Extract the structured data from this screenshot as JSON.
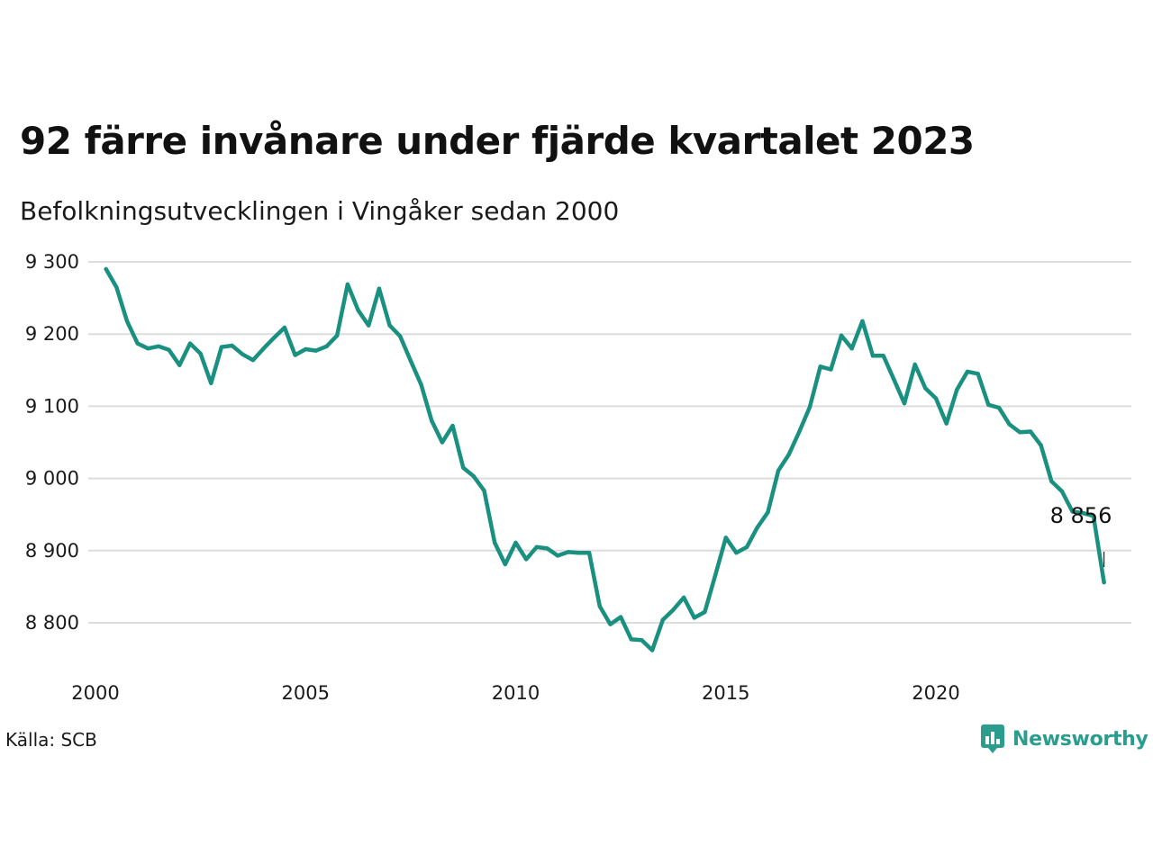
{
  "header": {
    "title": "92 färre invånare under fjärde kvartalet 2023",
    "subtitle": "Befolkningsutvecklingen i Vingåker sedan 2000"
  },
  "footer": {
    "source": "Källa: SCB",
    "logo_text": "Newsworthy",
    "logo_icon": "bar-chart-bubble-icon"
  },
  "colors": {
    "line": "#1a9080",
    "grid": "#dddddd",
    "logo": "#2a9d8f"
  },
  "chart_data": {
    "type": "line",
    "title": "92 färre invånare under fjärde kvartalet 2023",
    "subtitle": "Befolkningsutvecklingen i Vingåker sedan 2000",
    "xlabel": "",
    "ylabel": "",
    "ylim": [
      8760,
      9300
    ],
    "y_ticks": [
      9300,
      9200,
      9100,
      9000,
      8900,
      8800
    ],
    "y_tick_labels": [
      "9 300",
      "9 200",
      "9 100",
      "9 000",
      "8 900",
      "8 800"
    ],
    "x_ticks": [
      2000,
      2005,
      2010,
      2015,
      2020
    ],
    "x_tick_labels": [
      "2000",
      "2005",
      "2010",
      "2015",
      "2020"
    ],
    "grid": true,
    "last_value_label": "8 856",
    "series": [
      {
        "values": [
          [
            2000.25,
            9290
          ],
          [
            2000.5,
            9265
          ],
          [
            2000.75,
            9218
          ],
          [
            2001.0,
            9187
          ],
          [
            2001.25,
            9180
          ],
          [
            2001.5,
            9183
          ],
          [
            2001.75,
            9178
          ],
          [
            2002.0,
            9157
          ],
          [
            2002.25,
            9187
          ],
          [
            2002.5,
            9173
          ],
          [
            2002.75,
            9132
          ],
          [
            2003.0,
            9182
          ],
          [
            2003.25,
            9184
          ],
          [
            2003.5,
            9172
          ],
          [
            2003.75,
            9164
          ],
          [
            2004.0,
            9180
          ],
          [
            2004.25,
            9195
          ],
          [
            2004.5,
            9209
          ],
          [
            2004.75,
            9171
          ],
          [
            2005.0,
            9179
          ],
          [
            2005.25,
            9177
          ],
          [
            2005.5,
            9183
          ],
          [
            2005.75,
            9198
          ],
          [
            2006.0,
            9269
          ],
          [
            2006.25,
            9233
          ],
          [
            2006.5,
            9212
          ],
          [
            2006.75,
            9263
          ],
          [
            2007.0,
            9212
          ],
          [
            2007.25,
            9197
          ],
          [
            2007.5,
            9163
          ],
          [
            2007.75,
            9130
          ],
          [
            2008.0,
            9080
          ],
          [
            2008.25,
            9050
          ],
          [
            2008.5,
            9073
          ],
          [
            2008.75,
            9015
          ],
          [
            2009.0,
            9003
          ],
          [
            2009.25,
            8983
          ],
          [
            2009.5,
            8911
          ],
          [
            2009.75,
            8881
          ],
          [
            2010.0,
            8911
          ],
          [
            2010.25,
            8888
          ],
          [
            2010.5,
            8905
          ],
          [
            2010.75,
            8903
          ],
          [
            2011.0,
            8893
          ],
          [
            2011.25,
            8898
          ],
          [
            2011.5,
            8897
          ],
          [
            2011.75,
            8897
          ],
          [
            2012.0,
            8823
          ],
          [
            2012.25,
            8798
          ],
          [
            2012.5,
            8808
          ],
          [
            2012.75,
            8777
          ],
          [
            2013.0,
            8776
          ],
          [
            2013.25,
            8762
          ],
          [
            2013.5,
            8804
          ],
          [
            2013.75,
            8818
          ],
          [
            2014.0,
            8835
          ],
          [
            2014.25,
            8807
          ],
          [
            2014.5,
            8815
          ],
          [
            2014.75,
            8866
          ],
          [
            2015.0,
            8918
          ],
          [
            2015.25,
            8897
          ],
          [
            2015.5,
            8905
          ],
          [
            2015.75,
            8932
          ],
          [
            2016.0,
            8953
          ],
          [
            2016.25,
            9011
          ],
          [
            2016.5,
            9033
          ],
          [
            2016.75,
            9065
          ],
          [
            2017.0,
            9099
          ],
          [
            2017.25,
            9155
          ],
          [
            2017.5,
            9151
          ],
          [
            2017.75,
            9198
          ],
          [
            2018.0,
            9180
          ],
          [
            2018.25,
            9218
          ],
          [
            2018.5,
            9170
          ],
          [
            2018.75,
            9170
          ],
          [
            2019.0,
            9137
          ],
          [
            2019.25,
            9104
          ],
          [
            2019.5,
            9158
          ],
          [
            2019.75,
            9125
          ],
          [
            2020.0,
            9111
          ],
          [
            2020.25,
            9076
          ],
          [
            2020.5,
            9123
          ],
          [
            2020.75,
            9148
          ],
          [
            2021.0,
            9145
          ],
          [
            2021.25,
            9102
          ],
          [
            2021.5,
            9098
          ],
          [
            2021.75,
            9075
          ],
          [
            2022.0,
            9064
          ],
          [
            2022.25,
            9065
          ],
          [
            2022.5,
            9046
          ],
          [
            2022.75,
            8996
          ],
          [
            2023.0,
            8982
          ],
          [
            2023.25,
            8954
          ],
          [
            2023.5,
            8952
          ],
          [
            2023.75,
            8948
          ],
          [
            2024.0,
            8856
          ]
        ]
      }
    ]
  }
}
